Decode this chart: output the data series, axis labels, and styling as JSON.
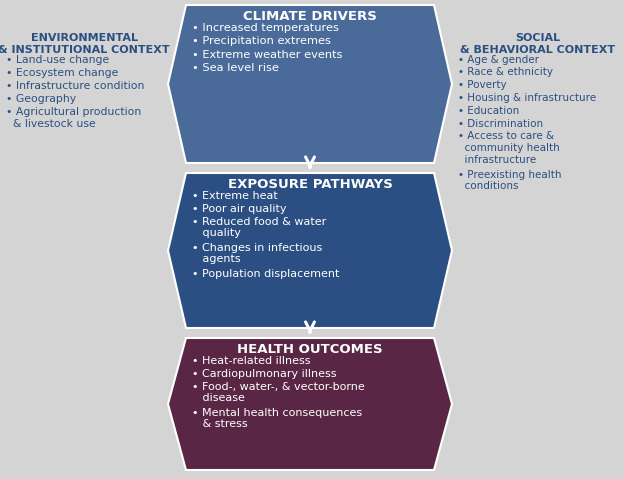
{
  "bg_color": "#d4d4d4",
  "climate_drivers": {
    "box_color": "#4a6b9a",
    "title": "CLIMATE DRIVERS",
    "title_color": "#ffffff",
    "bullet_color": "#ffffff",
    "bullets": [
      "Increased temperatures",
      "Precipitation extremes",
      "Extreme weather events",
      "Sea level rise"
    ]
  },
  "exposure_pathways": {
    "box_color": "#2b4f82",
    "title": "EXPOSURE PATHWAYS",
    "title_color": "#ffffff",
    "bullet_color": "#ffffff",
    "bullets": [
      "Extreme heat",
      "Poor air quality",
      "Reduced food & water\n   quality",
      "Changes in infectious\n   agents",
      "Population displacement"
    ]
  },
  "health_outcomes": {
    "box_color": "#5a2645",
    "title": "HEALTH OUTCOMES",
    "title_color": "#ffffff",
    "bullet_color": "#ffffff",
    "bullets": [
      "Heat-related illness",
      "Cardiopulmonary illness",
      "Food-, water-, & vector-borne\n   disease",
      "Mental health consequences\n   & stress"
    ]
  },
  "env_context": {
    "title": "ENVIRONMENTAL\n& INSTITUTIONAL CONTEXT",
    "title_color": "#2b4f82",
    "bullet_color": "#2b4f82",
    "bullets": [
      "Land-use change",
      "Ecosystem change",
      "Infrastructure condition",
      "Geography",
      "Agricultural production\n  & livestock use"
    ]
  },
  "social_context": {
    "title": "SOCIAL\n& BEHAVIORAL CONTEXT",
    "title_color": "#2b4f82",
    "bullet_color": "#2b4f82",
    "bullets": [
      "Age & gender",
      "Race & ethnicity",
      "Poverty",
      "Housing & infrastructure",
      "Education",
      "Discrimination",
      "Access to care &\n  community health\n  infrastructure",
      "Preexisting health\n  conditions"
    ]
  },
  "fig_width": 6.24,
  "fig_height": 4.79,
  "dpi": 100
}
